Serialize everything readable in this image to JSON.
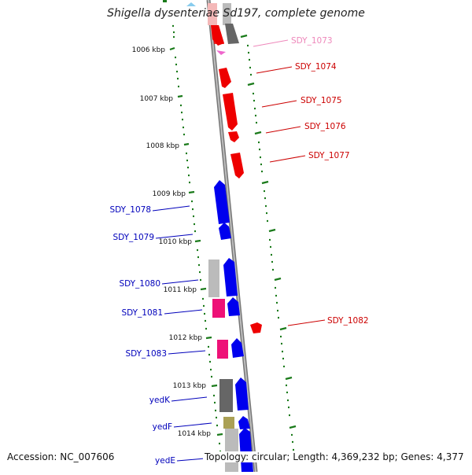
{
  "title": "Shigella dysenteriae Sd197, complete genome",
  "accession_text": "Accession: NC_007606",
  "summary_text": "Topology: circular; Length: 4,369,232 bp; Genes: 4,377",
  "colors": {
    "backbone": "#8c8c8c",
    "tick": "#1a7a1a",
    "red": "#ee0000",
    "pink_light": "#f4b8b8",
    "blue": "#0000ee",
    "magenta": "#ee1177",
    "gray_dark": "#666666",
    "gray_light": "#bbbbbb",
    "olive": "#aaa055",
    "faded_label": "#ee88bb"
  },
  "scale_labels": [
    "1006 kbp",
    "1007 kbp",
    "1008 kbp",
    "1009 kbp",
    "1010 kbp",
    "1011 kbp",
    "1012 kbp",
    "1013 kbp",
    "1014 kbp"
  ],
  "gene_labels": [
    {
      "name": "SDY_1073",
      "color": "#ee88bb"
    },
    {
      "name": "SDY_1074",
      "color": "#cc0000"
    },
    {
      "name": "SDY_1075",
      "color": "#cc0000"
    },
    {
      "name": "SDY_1076",
      "color": "#cc0000"
    },
    {
      "name": "SDY_1077",
      "color": "#cc0000"
    },
    {
      "name": "SDY_1078",
      "color": "#0000bb"
    },
    {
      "name": "SDY_1079",
      "color": "#0000bb"
    },
    {
      "name": "SDY_1080",
      "color": "#0000bb"
    },
    {
      "name": "SDY_1081",
      "color": "#0000bb"
    },
    {
      "name": "SDY_1082",
      "color": "#cc0000"
    },
    {
      "name": "SDY_1083",
      "color": "#0000bb"
    },
    {
      "name": "yedK",
      "color": "#0000bb"
    },
    {
      "name": "yedF",
      "color": "#0000bb"
    },
    {
      "name": "yedE",
      "color": "#0000bb"
    }
  ]
}
